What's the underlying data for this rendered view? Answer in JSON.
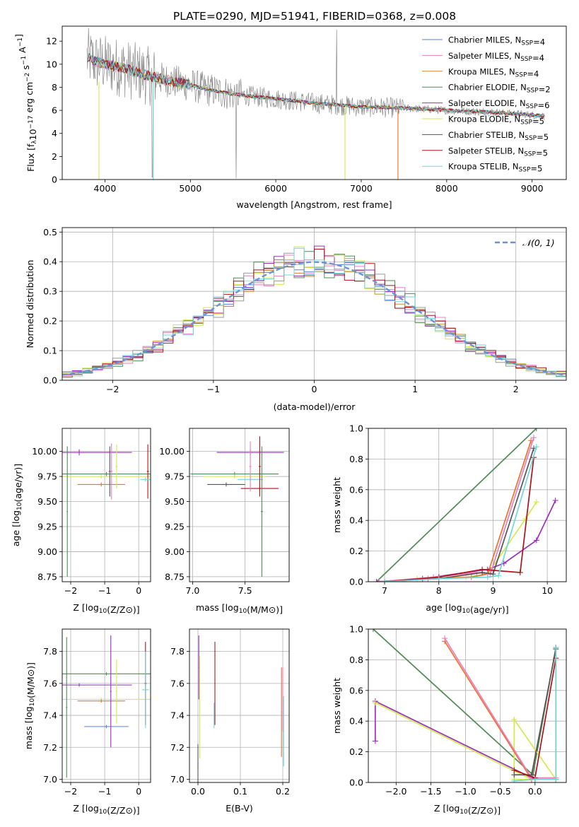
{
  "title": "PLATE=0290, MJD=51941, FIBERID=0368, z=0.008",
  "colors": {
    "chabrier_miles": "#5b7fd6",
    "salpeter_miles": "#e87fc0",
    "kroupa_miles": "#c88a2e",
    "chabrier_elodie": "#4f8a55",
    "salpeter_elodie": "#9a2fbf",
    "kroupa_elodie": "#d4e84f",
    "chabrier_stelib": "#555555",
    "salpeter_stelib": "#b0101a",
    "kroupa_stelib": "#6fd6dc",
    "orange": "#f07030",
    "normal": "#6a93d6"
  },
  "chart_data": [
    {
      "type": "line",
      "xlabel": "wavelength [Angstrom, rest frame]",
      "ylabel": "Flux [f_λ10^-17 erg cm^-2 s^-1 A^-1]",
      "xlim": [
        3500,
        9400
      ],
      "ylim": [
        0,
        13.3
      ],
      "xticks": [
        "4000",
        "5000",
        "6000",
        "7000",
        "8000",
        "9000"
      ],
      "yticks": [
        "0",
        "2",
        "4",
        "6",
        "8",
        "10",
        "12"
      ],
      "grid": false,
      "legend_position": "top-right",
      "legend": [
        "Chabrier MILES, N_SSP=4",
        "Salpeter MILES, N_SSP=4",
        "Kroupa MILES, N_SSP=4",
        "Chabrier ELODIE, N_SSP=2",
        "Salpeter ELODIE, N_SSP=6",
        "Kroupa ELODIE, N_SSP=5",
        "Chabrier STELIB, N_SSP=5",
        "Salpeter STELIB, N_SSP=5",
        "Kroupa STELIB, N_SSP=5"
      ],
      "model_continuum": {
        "x": [
          3800,
          3900,
          4000,
          4200,
          4500,
          4800,
          5000,
          5200,
          5500,
          6000,
          6500,
          7000,
          7500,
          8000,
          8500,
          9000,
          9150
        ],
        "y": [
          10.6,
          10.2,
          10.0,
          9.7,
          9.0,
          8.5,
          8.2,
          7.8,
          7.4,
          7.0,
          6.6,
          6.3,
          6.2,
          6.0,
          5.85,
          5.6,
          5.5
        ]
      }
    },
    {
      "type": "histogram",
      "xlabel": "(data-model)/error",
      "ylabel": "Normed distribution",
      "xlim": [
        -2.5,
        2.5
      ],
      "ylim": [
        0,
        0.515
      ],
      "xticks": [
        "−2",
        "−1",
        "0",
        "1",
        "2"
      ],
      "yticks": [
        "0.0",
        "0.1",
        "0.2",
        "0.3",
        "0.4",
        "0.5"
      ],
      "grid": true,
      "legend_position": "top-right",
      "legend": [
        "𝒩(0, 1)"
      ],
      "bin_width": 0.1
    },
    {
      "type": "errorbar",
      "xlabel": "Z [log10(Z/Z⊙)]",
      "ylabel": "age  [log10(age/yr)]",
      "xlim": [
        -2.25,
        0.35
      ],
      "ylim": [
        8.7,
        10.23
      ],
      "xticks": [
        "−2",
        "−1",
        "0"
      ],
      "yticks": [
        "8.75",
        "9.00",
        "9.25",
        "9.50",
        "9.75",
        "10.00"
      ],
      "grid": true,
      "points": [
        {
          "color": "salpeter_elodie",
          "x": -1.75,
          "xerr": 1.55,
          "y": 9.99,
          "yerr": 0.03
        },
        {
          "color": "chabrier_elodie",
          "x": -0.95,
          "xerr": 1.95,
          "y": 9.775,
          "yerr": 0.02
        },
        {
          "color": "kroupa_elodie",
          "x": -1.1,
          "xerr": 1.75,
          "y": 9.75,
          "yerr": 0.02
        },
        {
          "color": "orange",
          "x": -1.1,
          "xerr": 0.7,
          "y": 9.67,
          "yerr": 0.02
        },
        {
          "color": "chabrier_stelib",
          "x": -0.85,
          "xerr": 0.03,
          "y": 9.8,
          "yerr": 0.25
        },
        {
          "color": "salpeter_miles",
          "x": -0.8,
          "xerr": 0.03,
          "y": 9.8,
          "yerr": 0.28
        },
        {
          "color": "kroupa_elodie",
          "x": -0.65,
          "xerr": 0.03,
          "y": 9.85,
          "yerr": 0.22
        },
        {
          "color": "salpeter_stelib",
          "x": 0.27,
          "xerr": 0.03,
          "y": 9.8,
          "yerr": 0.27
        },
        {
          "color": "kroupa_stelib",
          "x": 0.2,
          "xerr": 0.15,
          "y": 9.72,
          "yerr": 0.02
        },
        {
          "color": "chabrier_elodie",
          "x": -2.1,
          "xerr": 0.02,
          "y": 9.4,
          "yerr": 0.65
        }
      ]
    },
    {
      "type": "errorbar",
      "xlabel": "mass [log10(M/M⊙)]",
      "ylabel": "",
      "xlim": [
        6.97,
        7.92
      ],
      "ylim": [
        8.7,
        10.23
      ],
      "xticks": [
        "7.0",
        "7.5"
      ],
      "yticks": [
        "8.75",
        "9.00",
        "9.25",
        "9.50",
        "9.75",
        "10.00"
      ],
      "grid": true,
      "points": [
        {
          "color": "salpeter_elodie",
          "x": 7.55,
          "xerr": 0.32,
          "y": 9.99,
          "yerr": 0.03
        },
        {
          "color": "chabrier_elodie",
          "x": 7.4,
          "xerr": 0.42,
          "y": 9.775,
          "yerr": 0.02
        },
        {
          "color": "kroupa_elodie",
          "x": 7.4,
          "xerr": 0.3,
          "y": 9.75,
          "yerr": 0.02
        },
        {
          "color": "chabrier_stelib",
          "x": 7.32,
          "xerr": 0.18,
          "y": 9.67,
          "yerr": 0.02
        },
        {
          "color": "salpeter_stelib",
          "x": 7.64,
          "xerr": 0.18,
          "y": 9.63,
          "yerr": 0.02
        },
        {
          "color": "kroupa_stelib",
          "x": 7.55,
          "xerr": 0.12,
          "y": 9.72,
          "yerr": 0.02
        },
        {
          "color": "chabrier_elodie",
          "x": 7.66,
          "xerr": 0.01,
          "y": 9.4,
          "yerr": 0.65
        },
        {
          "color": "salpeter_stelib",
          "x": 7.64,
          "xerr": 0.01,
          "y": 9.85,
          "yerr": 0.3
        },
        {
          "color": "salpeter_miles",
          "x": 7.55,
          "xerr": 0.01,
          "y": 9.85,
          "yerr": 0.25
        }
      ]
    },
    {
      "type": "line",
      "xlabel": "age  [log10(age/yr)]",
      "ylabel": "mass weight",
      "xlim": [
        6.7,
        10.35
      ],
      "ylim": [
        0,
        1.0
      ],
      "xticks": [
        "7",
        "8",
        "9",
        "10"
      ],
      "yticks": [
        "0.0",
        "0.2",
        "0.4",
        "0.6",
        "0.8",
        "1.0"
      ],
      "grid": true,
      "series": [
        {
          "color": "chabrier_elodie",
          "x": [
            6.85,
            9.8
          ],
          "y": [
            0.0,
            1.0
          ]
        },
        {
          "color": "salpeter_elodie",
          "x": [
            6.85,
            7.7,
            8.9,
            9.2,
            9.8,
            10.15
          ],
          "y": [
            0.0,
            0.02,
            0.08,
            0.12,
            0.27,
            0.53
          ]
        },
        {
          "color": "kroupa_elodie",
          "x": [
            6.9,
            7.6,
            8.5,
            8.9,
            9.6,
            9.8
          ],
          "y": [
            0.0,
            0.02,
            0.03,
            0.05,
            0.41,
            0.52
          ]
        },
        {
          "color": "orange",
          "x": [
            6.9,
            7.8,
            8.6,
            8.9,
            9.7
          ],
          "y": [
            0.0,
            0.02,
            0.03,
            0.05,
            0.92
          ]
        },
        {
          "color": "salpeter_miles",
          "x": [
            6.9,
            7.9,
            8.7,
            8.95,
            9.75
          ],
          "y": [
            0.0,
            0.03,
            0.06,
            0.05,
            0.94
          ]
        },
        {
          "color": "chabrier_stelib",
          "x": [
            7.0,
            8.0,
            8.8,
            9.0,
            9.75
          ],
          "y": [
            0.0,
            0.02,
            0.06,
            0.05,
            0.87
          ]
        },
        {
          "color": "salpeter_stelib",
          "x": [
            7.0,
            8.0,
            8.8,
            9.5,
            9.75
          ],
          "y": [
            0.0,
            0.03,
            0.08,
            0.06,
            0.81
          ]
        },
        {
          "color": "kroupa_stelib",
          "x": [
            7.0,
            8.0,
            8.9,
            9.1,
            9.8
          ],
          "y": [
            0.0,
            0.02,
            0.03,
            0.04,
            0.88
          ]
        }
      ]
    },
    {
      "type": "errorbar",
      "xlabel": "Z [log10(Z/Z⊙)]",
      "ylabel": "mass [log10(M/M⊙)]",
      "xlim": [
        -2.25,
        0.35
      ],
      "ylim": [
        6.98,
        7.94
      ],
      "xticks": [
        "−2",
        "−1",
        "0"
      ],
      "yticks": [
        "7.0",
        "7.2",
        "7.4",
        "7.6",
        "7.8"
      ],
      "grid": true,
      "points": [
        {
          "color": "chabrier_elodie",
          "x": -0.95,
          "xerr": 1.95,
          "y": 7.66,
          "yerr": 0.01
        },
        {
          "color": "salpeter_elodie",
          "x": -1.75,
          "xerr": 1.55,
          "y": 7.59,
          "yerr": 0.01
        },
        {
          "color": "kroupa_elodie",
          "x": -1.1,
          "xerr": 1.75,
          "y": 7.5,
          "yerr": 0.01
        },
        {
          "color": "orange",
          "x": -1.1,
          "xerr": 0.7,
          "y": 7.49,
          "yerr": 0.01
        },
        {
          "color": "chabrier_miles",
          "x": -0.95,
          "xerr": 0.65,
          "y": 7.33,
          "yerr": 0.01
        },
        {
          "color": "salpeter_elodie",
          "x": -0.82,
          "xerr": 0.02,
          "y": 7.55,
          "yerr": 0.35
        },
        {
          "color": "kroupa_elodie",
          "x": -0.65,
          "xerr": 0.02,
          "y": 7.55,
          "yerr": 0.2
        },
        {
          "color": "salpeter_stelib",
          "x": 0.2,
          "xerr": 0.03,
          "y": 7.6,
          "yerr": 0.26
        },
        {
          "color": "kroupa_stelib",
          "x": 0.2,
          "xerr": 0.1,
          "y": 7.56,
          "yerr": 0.24
        },
        {
          "color": "chabrier_elodie",
          "x": -2.12,
          "xerr": 0.02,
          "y": 7.45,
          "yerr": 0.44
        }
      ]
    },
    {
      "type": "errorbar",
      "xlabel": "E(B-V)",
      "ylabel": "",
      "xlim": [
        -0.02,
        0.215
      ],
      "ylim": [
        6.98,
        7.94
      ],
      "xticks": [
        "0.0",
        "0.1",
        "0.2"
      ],
      "yticks": [
        "7.0",
        "7.2",
        "7.4",
        "7.6",
        "7.8"
      ],
      "grid": true,
      "points": [
        {
          "color": "salpeter_elodie",
          "x": 0.002,
          "xerr": 0.001,
          "y": 7.7,
          "yerr": 0.2
        },
        {
          "color": "kroupa_elodie",
          "x": 0.004,
          "xerr": 0.001,
          "y": 7.45,
          "yerr": 0.32
        },
        {
          "color": "salpeter_stelib",
          "x": 0.04,
          "xerr": 0.001,
          "y": 7.6,
          "yerr": 0.26
        },
        {
          "color": "kroupa_stelib",
          "x": 0.038,
          "xerr": 0.001,
          "y": 7.4,
          "yerr": 0.08
        },
        {
          "color": "orange",
          "x": 0.197,
          "xerr": 0.001,
          "y": 7.42,
          "yerr": 0.28
        },
        {
          "color": "salpeter_miles",
          "x": 0.2,
          "xerr": 0.001,
          "y": 7.5,
          "yerr": 0.2
        },
        {
          "color": "kroupa_stelib",
          "x": 0.202,
          "xerr": 0.001,
          "y": 7.3,
          "yerr": 0.22
        },
        {
          "color": "chabrier_stelib",
          "x": 0.0,
          "xerr": 0.001,
          "y": 7.1,
          "yerr": 0.12
        }
      ]
    },
    {
      "type": "line",
      "xlabel": "Z [log10(Z/Z⊙)]",
      "ylabel": "mass weight",
      "xlim": [
        -2.4,
        0.45
      ],
      "ylim": [
        0,
        1.0
      ],
      "xticks": [
        "−2.0",
        "−1.5",
        "−1.0",
        "−0.5",
        "0.0"
      ],
      "yticks": [
        "0.0",
        "0.2",
        "0.4",
        "0.6",
        "0.8",
        "1.0"
      ],
      "grid": true,
      "series": [
        {
          "color": "chabrier_elodie",
          "x": [
            -2.33,
            -0.03,
            0.3
          ],
          "y": [
            1.0,
            0.05,
            0.88
          ]
        },
        {
          "color": "salpeter_elodie",
          "x": [
            -2.3,
            -2.3,
            0.0,
            0.3
          ],
          "y": [
            0.27,
            0.53,
            0.02,
            0.02
          ]
        },
        {
          "color": "kroupa_elodie",
          "x": [
            -2.3,
            -0.05,
            -0.3,
            -0.3,
            0.3
          ],
          "y": [
            0.52,
            0.02,
            0.02,
            0.41,
            0.02
          ]
        },
        {
          "color": "orange",
          "x": [
            -1.3,
            -0.05,
            0.3,
            0.3
          ],
          "y": [
            0.92,
            0.02,
            0.02,
            0.88
          ]
        },
        {
          "color": "salpeter_miles",
          "x": [
            -1.3,
            -0.05,
            0.3
          ],
          "y": [
            0.94,
            0.03,
            0.03
          ]
        },
        {
          "color": "chabrier_stelib",
          "x": [
            -0.3,
            -0.05,
            0.3
          ],
          "y": [
            0.05,
            0.05,
            0.87
          ]
        },
        {
          "color": "salpeter_stelib",
          "x": [
            -0.3,
            0.0,
            0.3
          ],
          "y": [
            0.08,
            0.03,
            0.81
          ]
        },
        {
          "color": "kroupa_stelib",
          "x": [
            -0.3,
            0.0,
            0.3,
            0.3
          ],
          "y": [
            0.01,
            0.02,
            0.02,
            0.88
          ]
        }
      ]
    }
  ]
}
